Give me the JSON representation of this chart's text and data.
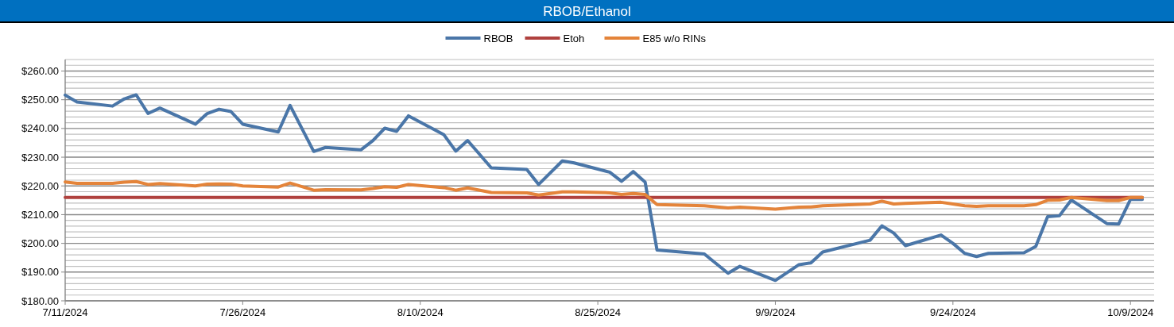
{
  "chart_data": {
    "type": "line",
    "title": "RBOB/Ethanol",
    "x": [
      "2024-07-11",
      "2024-07-12",
      "2024-07-15",
      "2024-07-16",
      "2024-07-17",
      "2024-07-18",
      "2024-07-19",
      "2024-07-22",
      "2024-07-23",
      "2024-07-24",
      "2024-07-25",
      "2024-07-26",
      "2024-07-29",
      "2024-07-30",
      "2024-08-01",
      "2024-08-02",
      "2024-08-05",
      "2024-08-06",
      "2024-08-07",
      "2024-08-08",
      "2024-08-09",
      "2024-08-12",
      "2024-08-13",
      "2024-08-14",
      "2024-08-16",
      "2024-08-19",
      "2024-08-20",
      "2024-08-22",
      "2024-08-23",
      "2024-08-26",
      "2024-08-27",
      "2024-08-28",
      "2024-08-29",
      "2024-08-30",
      "2024-09-03",
      "2024-09-05",
      "2024-09-06",
      "2024-09-09",
      "2024-09-11",
      "2024-09-12",
      "2024-09-13",
      "2024-09-17",
      "2024-09-18",
      "2024-09-19",
      "2024-09-20",
      "2024-09-23",
      "2024-09-24",
      "2024-09-25",
      "2024-09-26",
      "2024-09-27",
      "2024-09-30",
      "2024-10-01",
      "2024-10-02",
      "2024-10-03",
      "2024-10-04",
      "2024-10-07",
      "2024-10-08",
      "2024-10-09",
      "2024-10-10"
    ],
    "series": [
      {
        "name": "RBOB",
        "color": "#4a76a8",
        "values": [
          251.6,
          249.2,
          247.8,
          250.3,
          251.7,
          245.2,
          247.1,
          241.5,
          245.2,
          246.7,
          245.9,
          241.5,
          238.8,
          248.0,
          232.0,
          233.4,
          232.6,
          235.8,
          240.1,
          239.0,
          244.4,
          237.8,
          232.1,
          235.8,
          226.3,
          225.7,
          220.5,
          228.7,
          228.0,
          224.8,
          221.6,
          225.0,
          221.3,
          197.7,
          196.3,
          189.6,
          192.0,
          187.1,
          192.6,
          193.2,
          197.0,
          201.1,
          206.1,
          203.6,
          199.2,
          202.9,
          200.0,
          196.5,
          195.4,
          196.5,
          196.7,
          198.9,
          209.3,
          209.6,
          215.1,
          206.9,
          206.7,
          215.3,
          215.3
        ]
      },
      {
        "name": "Etoh",
        "color": "#b0413e",
        "x": [
          "2024-07-11",
          "2024-10-10"
        ],
        "values": [
          216.0,
          216.0
        ]
      },
      {
        "name": "E85 w/o RINs",
        "color": "#e4843a",
        "values": [
          221.4,
          220.9,
          220.9,
          221.3,
          221.5,
          220.5,
          220.8,
          220.0,
          220.6,
          220.7,
          220.6,
          220.0,
          219.6,
          221.0,
          218.5,
          218.7,
          218.6,
          219.1,
          219.7,
          219.5,
          220.5,
          219.4,
          218.5,
          219.3,
          217.7,
          217.6,
          216.8,
          217.9,
          217.9,
          217.6,
          217.0,
          217.4,
          217.0,
          213.5,
          213.1,
          212.3,
          212.6,
          211.9,
          212.6,
          212.7,
          213.1,
          213.7,
          214.7,
          213.7,
          213.9,
          214.3,
          213.7,
          213.1,
          212.9,
          213.1,
          213.1,
          213.5,
          215.0,
          215.1,
          216.0,
          214.9,
          214.9,
          216.0,
          216.0
        ]
      }
    ],
    "xlim": [
      "2024-07-11",
      "2024-10-11"
    ],
    "xticks": [
      {
        "value": "2024-07-11",
        "label": "7/11/2024"
      },
      {
        "value": "2024-07-26",
        "label": "7/26/2024"
      },
      {
        "value": "2024-08-10",
        "label": "8/10/2024"
      },
      {
        "value": "2024-08-25",
        "label": "8/25/2024"
      },
      {
        "value": "2024-09-09",
        "label": "9/9/2024"
      },
      {
        "value": "2024-09-24",
        "label": "9/24/2024"
      },
      {
        "value": "2024-10-09",
        "label": "10/9/2024"
      }
    ],
    "ylim": [
      180,
      264
    ],
    "yticks": [
      {
        "value": 180,
        "label": "$180.00"
      },
      {
        "value": 182,
        "label": null
      },
      {
        "value": 184,
        "label": null
      },
      {
        "value": 186,
        "label": null
      },
      {
        "value": 188,
        "label": null
      },
      {
        "value": 190,
        "label": "$190.00"
      },
      {
        "value": 192,
        "label": null
      },
      {
        "value": 194,
        "label": null
      },
      {
        "value": 196,
        "label": null
      },
      {
        "value": 198,
        "label": null
      },
      {
        "value": 200,
        "label": "$200.00"
      },
      {
        "value": 202,
        "label": null
      },
      {
        "value": 204,
        "label": null
      },
      {
        "value": 206,
        "label": null
      },
      {
        "value": 208,
        "label": null
      },
      {
        "value": 210,
        "label": "$210.00"
      },
      {
        "value": 212,
        "label": null
      },
      {
        "value": 214,
        "label": null
      },
      {
        "value": 216,
        "label": null
      },
      {
        "value": 218,
        "label": null
      },
      {
        "value": 220,
        "label": "$220.00"
      },
      {
        "value": 222,
        "label": null
      },
      {
        "value": 224,
        "label": null
      },
      {
        "value": 226,
        "label": null
      },
      {
        "value": 228,
        "label": null
      },
      {
        "value": 230,
        "label": "$230.00"
      },
      {
        "value": 232,
        "label": null
      },
      {
        "value": 234,
        "label": null
      },
      {
        "value": 236,
        "label": null
      },
      {
        "value": 238,
        "label": null
      },
      {
        "value": 240,
        "label": "$240.00"
      },
      {
        "value": 242,
        "label": null
      },
      {
        "value": 244,
        "label": null
      },
      {
        "value": 246,
        "label": null
      },
      {
        "value": 248,
        "label": null
      },
      {
        "value": 250,
        "label": "$250.00"
      },
      {
        "value": 252,
        "label": null
      },
      {
        "value": 254,
        "label": null
      },
      {
        "value": 256,
        "label": null
      },
      {
        "value": 258,
        "label": null
      },
      {
        "value": 260,
        "label": "$260.00"
      },
      {
        "value": 262,
        "label": null
      },
      {
        "value": 264,
        "label": null
      }
    ],
    "grid": "y",
    "legend": "top",
    "marker": "none",
    "line_style": "solid"
  }
}
